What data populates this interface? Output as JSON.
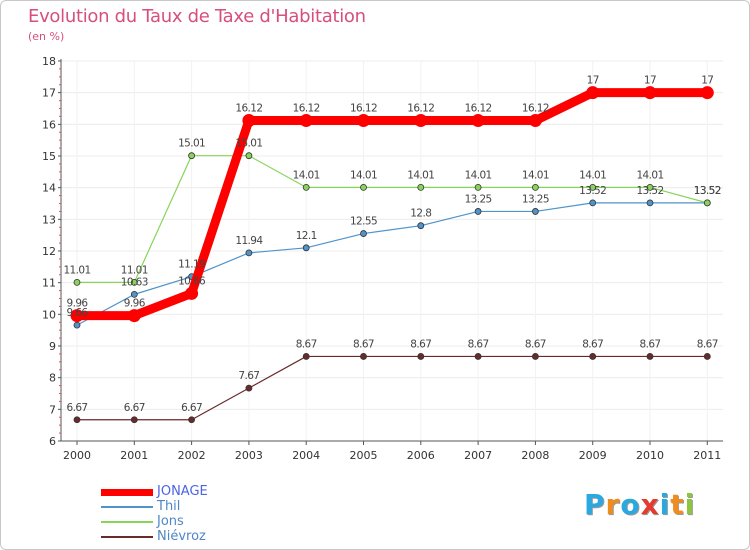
{
  "title": "Evolution du Taux de Taxe d'Habitation",
  "subtitle": "(en %)",
  "chart_data": {
    "type": "line",
    "title": "Evolution du Taux de Taxe d'Habitation",
    "ylabel": "(en %)",
    "xlabel": "",
    "ylim": [
      6,
      18
    ],
    "yticks": [
      "6",
      "7",
      "8",
      "9",
      "10",
      "11",
      "12",
      "13",
      "14",
      "15",
      "16",
      "17",
      "18"
    ],
    "categories": [
      "2000",
      "2001",
      "2002",
      "2003",
      "2004",
      "2005",
      "2006",
      "2007",
      "2008",
      "2009",
      "2010",
      "2011"
    ],
    "series": [
      {
        "name": "JONAGE",
        "color": "#ff0000",
        "values": [
          9.96,
          9.96,
          10.66,
          16.12,
          16.12,
          16.12,
          16.12,
          16.12,
          16.12,
          17,
          17,
          17
        ],
        "labels": [
          "9.96",
          "9.96",
          "10.66",
          "16.12",
          "16.12",
          "16.12",
          "16.12",
          "16.12",
          "16.12",
          "17",
          "17",
          "17"
        ]
      },
      {
        "name": "Thil",
        "color": "#4f93c9",
        "values": [
          9.66,
          10.63,
          11.19,
          11.94,
          12.1,
          12.55,
          12.8,
          13.25,
          13.25,
          13.52,
          13.52,
          13.52
        ],
        "labels": [
          "9.66",
          "10.63",
          "11.19",
          "11.94",
          "12.1",
          "12.55",
          "12.8",
          "13.25",
          "13.25",
          "13.52",
          "13.52",
          "13.52"
        ]
      },
      {
        "name": "Jons",
        "color": "#88d45a",
        "values": [
          11.01,
          11.01,
          15.01,
          15.01,
          14.01,
          14.01,
          14.01,
          14.01,
          14.01,
          14.01,
          14.01,
          13.52
        ],
        "labels": [
          "11.01",
          "11.01",
          "15.01",
          "15.01",
          "14.01",
          "14.01",
          "14.01",
          "14.01",
          "14.01",
          "14.01",
          "14.01",
          "13.52"
        ]
      },
      {
        "name": "Niévroz",
        "color": "#6b2a2a",
        "values": [
          6.67,
          6.67,
          6.67,
          7.67,
          8.67,
          8.67,
          8.67,
          8.67,
          8.67,
          8.67,
          8.67,
          8.67
        ],
        "labels": [
          "6.67",
          "6.67",
          "6.67",
          "7.67",
          "8.67",
          "8.67",
          "8.67",
          "8.67",
          "8.67",
          "8.67",
          "8.67",
          "8.67"
        ]
      }
    ],
    "legend": [
      "JONAGE",
      "Thil",
      "Jons",
      "Niévroz"
    ],
    "grid": true,
    "legend_position": "bottom-left"
  },
  "logo": {
    "letters": [
      {
        "ch": "P",
        "color": "#2aa8e0"
      },
      {
        "ch": "r",
        "color": "#f08c1e"
      },
      {
        "ch": "o",
        "color": "#2aa8e0"
      },
      {
        "ch": "x",
        "color": "#e53b2f"
      },
      {
        "ch": "i",
        "color": "#2aa8e0"
      },
      {
        "ch": "t",
        "color": "#f08c1e"
      },
      {
        "ch": "i",
        "color": "#8cc63f"
      }
    ]
  }
}
